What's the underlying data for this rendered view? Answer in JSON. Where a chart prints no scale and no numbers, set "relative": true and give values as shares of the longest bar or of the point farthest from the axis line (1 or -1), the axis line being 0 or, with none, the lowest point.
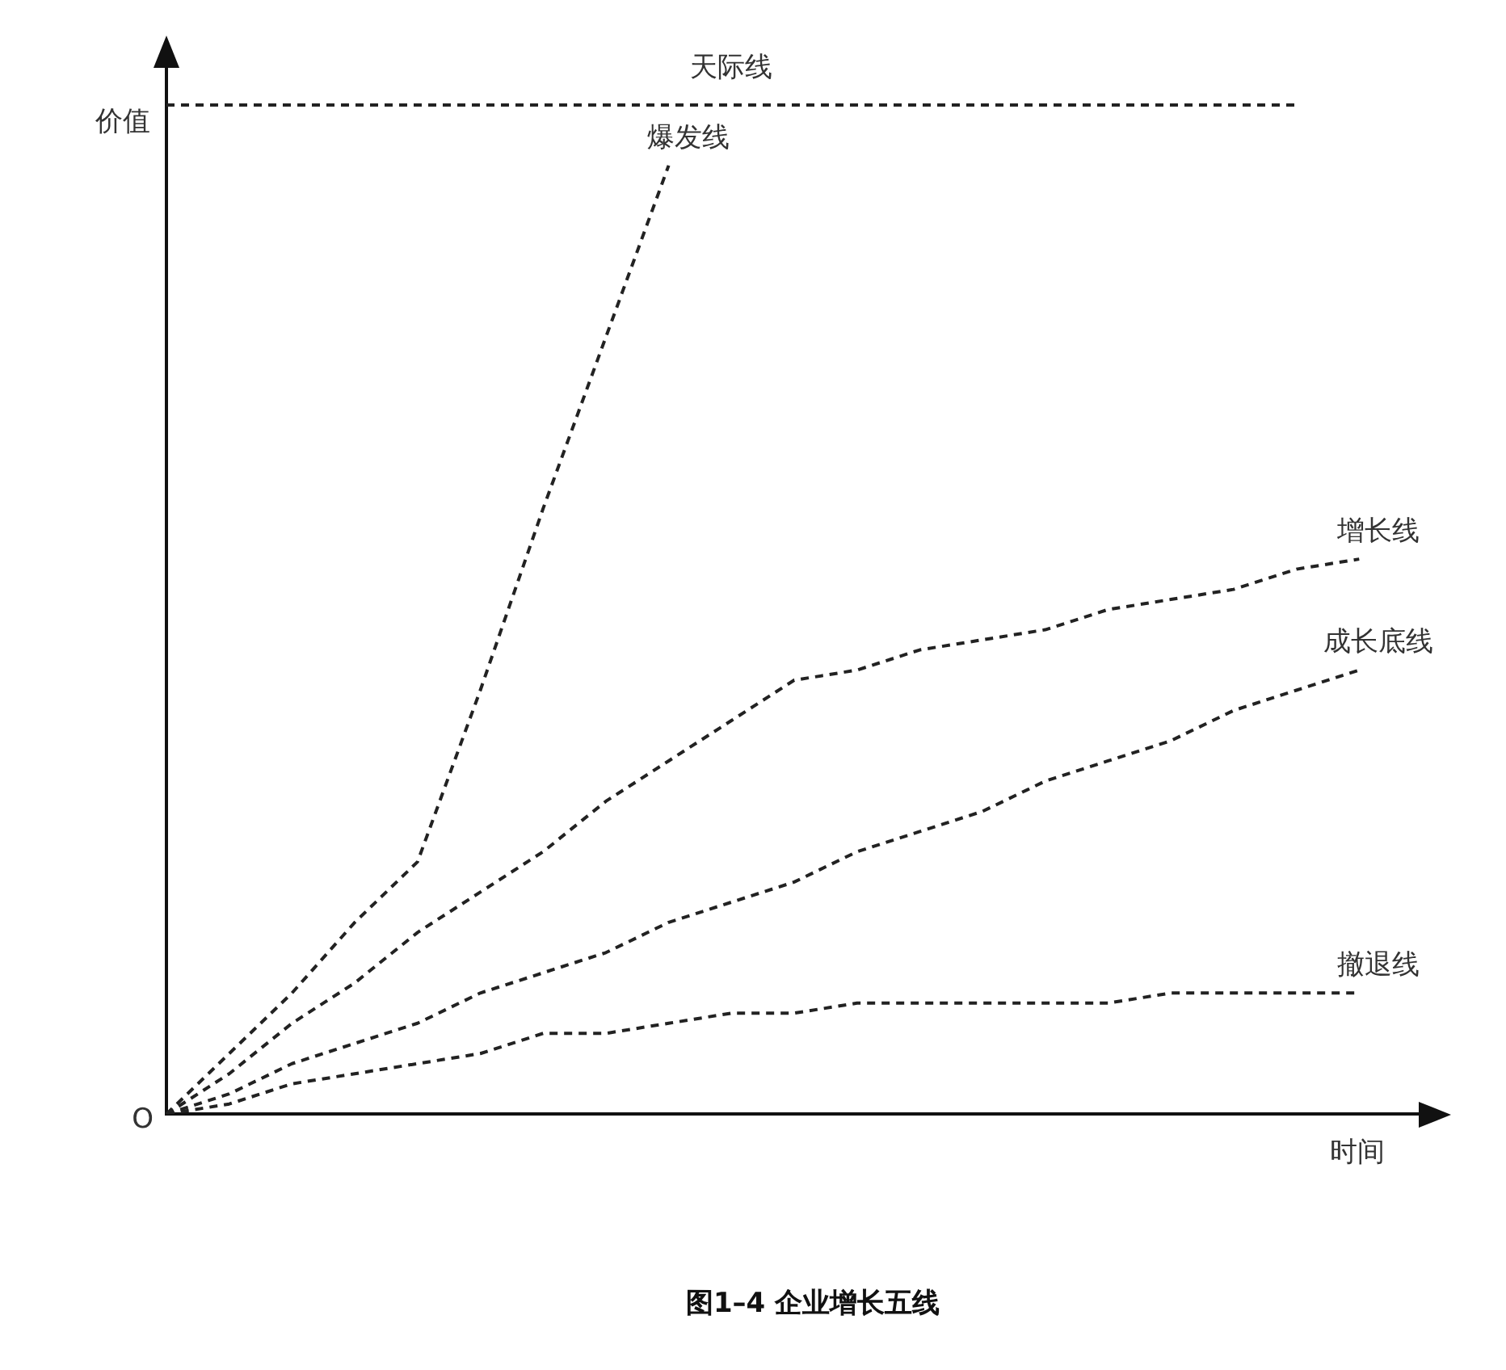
{
  "chart_data": {
    "type": "line",
    "title": "图1–4 企业增长五线",
    "xlabel": "时间",
    "ylabel": "价值",
    "annotations": [
      "O"
    ],
    "relative": true,
    "grid": false,
    "legend": false,
    "line_style": "dashed",
    "marker": "none",
    "categories": [
      null,
      null,
      null,
      null,
      null,
      null,
      null,
      null,
      null,
      null,
      null,
      null,
      null,
      null,
      null,
      null,
      null,
      null,
      null,
      null,
      null
    ],
    "series": [
      {
        "name": "天际线",
        "color": "#222222",
        "values": [
          1,
          1,
          1,
          1,
          1,
          1,
          1,
          1,
          1,
          1,
          1,
          1,
          1,
          1,
          1,
          1,
          1,
          1,
          1,
          null,
          null
        ]
      },
      {
        "name": "爆发线",
        "color": "#222222",
        "values": [
          0,
          0.06,
          0.12,
          0.19,
          0.25,
          0.42,
          0.6,
          0.77,
          0.94,
          null,
          null,
          null,
          null,
          null,
          null,
          null,
          null,
          null,
          null,
          null,
          null
        ]
      },
      {
        "name": "增长线",
        "color": "#222222",
        "values": [
          0,
          0.04,
          0.09,
          0.13,
          0.18,
          0.22,
          0.26,
          0.31,
          0.35,
          0.39,
          0.43,
          0.44,
          0.46,
          0.47,
          0.48,
          0.5,
          0.51,
          0.52,
          0.54,
          0.55,
          null
        ]
      },
      {
        "name": "成长底线",
        "color": "#222222",
        "values": [
          0,
          0.02,
          0.05,
          0.07,
          0.09,
          0.12,
          0.14,
          0.16,
          0.19,
          0.21,
          0.23,
          0.26,
          0.28,
          0.3,
          0.33,
          0.35,
          0.37,
          0.4,
          0.42,
          0.44,
          null
        ]
      },
      {
        "name": "撤退线",
        "color": "#222222",
        "values": [
          0,
          0.01,
          0.03,
          0.04,
          0.05,
          0.06,
          0.08,
          0.08,
          0.09,
          0.1,
          0.1,
          0.11,
          0.11,
          0.11,
          0.11,
          0.11,
          0.12,
          0.12,
          0.12,
          0.12,
          null
        ]
      }
    ]
  }
}
